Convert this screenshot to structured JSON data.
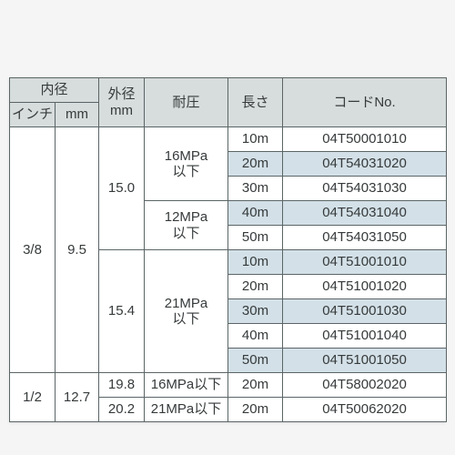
{
  "header": {
    "inner_diameter": "内径",
    "inch": "インチ",
    "mm": "mm",
    "outer_diameter_l1": "外径",
    "outer_diameter_l2": "mm",
    "pressure": "耐圧",
    "length": "長さ",
    "code": "コードNo."
  },
  "groups": [
    {
      "inch": "3/8",
      "mm": "9.5",
      "ods": [
        {
          "od": "15.0",
          "pressures": [
            {
              "press_l1": "16MPa",
              "press_l2": "以下",
              "rows": [
                {
                  "len": "10m",
                  "code": "04T50001010",
                  "hl": false
                },
                {
                  "len": "20m",
                  "code": "04T54031020",
                  "hl": true
                },
                {
                  "len": "30m",
                  "code": "04T54031030",
                  "hl": false
                }
              ]
            },
            {
              "press_l1": "12MPa",
              "press_l2": "以下",
              "rows": [
                {
                  "len": "40m",
                  "code": "04T54031040",
                  "hl": true
                },
                {
                  "len": "50m",
                  "code": "04T54031050",
                  "hl": false
                }
              ]
            }
          ]
        },
        {
          "od": "15.4",
          "pressures": [
            {
              "press_l1": "21MPa",
              "press_l2": "以下",
              "rows": [
                {
                  "len": "10m",
                  "code": "04T51001010",
                  "hl": true
                },
                {
                  "len": "20m",
                  "code": "04T51001020",
                  "hl": false
                },
                {
                  "len": "30m",
                  "code": "04T51001030",
                  "hl": true
                },
                {
                  "len": "40m",
                  "code": "04T51001040",
                  "hl": false
                },
                {
                  "len": "50m",
                  "code": "04T51001050",
                  "hl": true
                }
              ]
            }
          ]
        }
      ]
    },
    {
      "inch": "1/2",
      "mm": "12.7",
      "ods": [
        {
          "od": "19.8",
          "pressures": [
            {
              "press_inline": "16MPa以下",
              "rows": [
                {
                  "len": "20m",
                  "code": "04T58002020",
                  "hl": false
                }
              ]
            }
          ]
        },
        {
          "od": "20.2",
          "pressures": [
            {
              "press_inline": "21MPa以下",
              "rows": [
                {
                  "len": "20m",
                  "code": "04T50062020",
                  "hl": false
                }
              ]
            }
          ]
        }
      ]
    }
  ],
  "colors": {
    "header_bg": "#d7dcdc",
    "highlight_bg": "#d3e0e7",
    "border": "#5b6566",
    "text": "#363a3b",
    "page_bg": "#f5f5f5",
    "sheet_bg": "#ffffff"
  }
}
